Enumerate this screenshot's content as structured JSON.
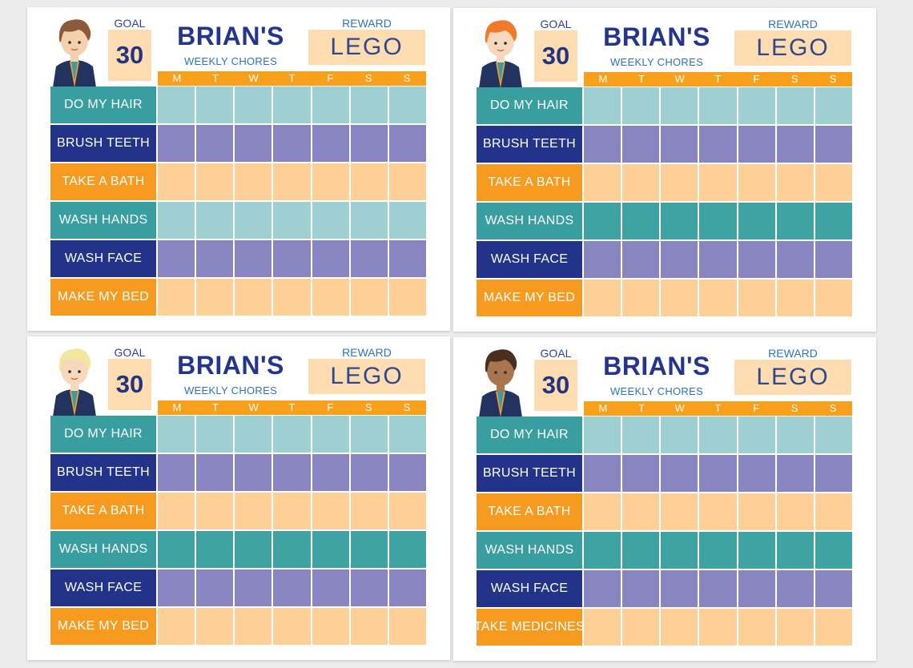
{
  "colors": {
    "teal": "#389ea0",
    "teal_dark": "#2c9ca0",
    "navy": "#23338a",
    "orange": "#f79b20",
    "cell_teal_light": "#9ed0d2",
    "cell_teal_dark": "#3da4a3",
    "cell_purple": "#8985c1",
    "cell_orange": "#fcd097",
    "header_orange": "#f8a01c"
  },
  "days": [
    "M",
    "T",
    "W",
    "T",
    "F",
    "S",
    "S"
  ],
  "cards": [
    {
      "avatar": {
        "icon": "boy-brown-hair-icon",
        "hair": "#8a5a3a",
        "skin": "#f3d1ac"
      },
      "goal_label": "GOAL",
      "goal_value": "30",
      "title": "BRIAN'S",
      "subtitle": "WEEKLY CHORES",
      "reward_label": "REWARD",
      "reward_value": "LEGO",
      "chores": [
        {
          "label": "DO MY HAIR",
          "color": "#389ea0",
          "cell": "#9ed0d2"
        },
        {
          "label": "BRUSH TEETH",
          "color": "#23338a",
          "cell": "#8985c1"
        },
        {
          "label": "TAKE A BATH",
          "color": "#f79b20",
          "cell": "#fcd097"
        },
        {
          "label": "WASH HANDS",
          "color": "#389ea0",
          "cell": "#9ed0d2"
        },
        {
          "label": "WASH FACE",
          "color": "#23338a",
          "cell": "#8985c1"
        },
        {
          "label": "MAKE MY BED",
          "color": "#f79b20",
          "cell": "#fcd097"
        }
      ]
    },
    {
      "avatar": {
        "icon": "boy-ginger-hair-icon",
        "hair": "#f07a2a",
        "skin": "#f6d9bc"
      },
      "goal_label": "GOAL",
      "goal_value": "30",
      "title": "BRIAN'S",
      "subtitle": "WEEKLY CHORES",
      "reward_label": "REWARD",
      "reward_value": "LEGO",
      "chores": [
        {
          "label": "DO MY HAIR",
          "color": "#389ea0",
          "cell": "#9ed0d2"
        },
        {
          "label": "BRUSH TEETH",
          "color": "#23338a",
          "cell": "#8985c1"
        },
        {
          "label": "TAKE A BATH",
          "color": "#f79b20",
          "cell": "#fcd097"
        },
        {
          "label": "WASH HANDS",
          "color": "#389ea0",
          "cell": "#3da4a3"
        },
        {
          "label": "WASH FACE",
          "color": "#23338a",
          "cell": "#8985c1"
        },
        {
          "label": "MAKE MY BED",
          "color": "#f79b20",
          "cell": "#fcd097"
        }
      ]
    },
    {
      "avatar": {
        "icon": "boy-blonde-hair-icon",
        "hair": "#f2e6a0",
        "skin": "#f6d9bc"
      },
      "goal_label": "GOAL",
      "goal_value": "30",
      "title": "BRIAN'S",
      "subtitle": "WEEKLY CHORES",
      "reward_label": "REWARD",
      "reward_value": "LEGO",
      "chores": [
        {
          "label": "DO MY HAIR",
          "color": "#389ea0",
          "cell": "#9ed0d2"
        },
        {
          "label": "BRUSH TEETH",
          "color": "#23338a",
          "cell": "#8985c1"
        },
        {
          "label": "TAKE A BATH",
          "color": "#f79b20",
          "cell": "#fcd097"
        },
        {
          "label": "WASH HANDS",
          "color": "#389ea0",
          "cell": "#3da4a3"
        },
        {
          "label": "WASH FACE",
          "color": "#23338a",
          "cell": "#8985c1"
        },
        {
          "label": "MAKE MY BED",
          "color": "#f79b20",
          "cell": "#fcd097"
        }
      ]
    },
    {
      "avatar": {
        "icon": "boy-dark-curly-hair-icon",
        "hair": "#4a2e1e",
        "skin": "#a8754e"
      },
      "goal_label": "GOAL",
      "goal_value": "30",
      "title": "BRIAN'S",
      "subtitle": "WEEKLY CHORES",
      "reward_label": "REWARD",
      "reward_value": "LEGO",
      "chores": [
        {
          "label": "DO MY HAIR",
          "color": "#389ea0",
          "cell": "#9ed0d2"
        },
        {
          "label": "BRUSH TEETH",
          "color": "#23338a",
          "cell": "#8985c1"
        },
        {
          "label": "TAKE A BATH",
          "color": "#f79b20",
          "cell": "#fcd097"
        },
        {
          "label": "WASH HANDS",
          "color": "#389ea0",
          "cell": "#3da4a3"
        },
        {
          "label": "WASH FACE",
          "color": "#23338a",
          "cell": "#8985c1"
        },
        {
          "label": "TAKE MEDICINES",
          "color": "#f79b20",
          "cell": "#fcd097"
        }
      ]
    }
  ]
}
